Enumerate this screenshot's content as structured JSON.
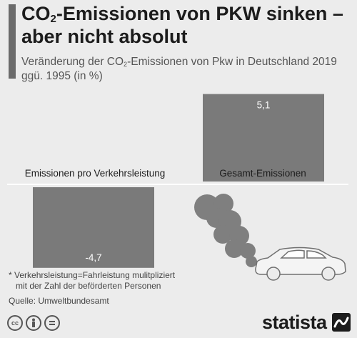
{
  "header": {
    "title_pre": "CO",
    "title_sub": "2",
    "title_post": "-Emissionen von PKW sinken – aber nicht absolut",
    "subtitle_pre": "Veränderung der CO",
    "subtitle_sub": "2",
    "subtitle_post": "-Emissionen von Pkw in Deutschland 2019 ggü. 1995 (in %)"
  },
  "chart_data": {
    "type": "bar",
    "categories": [
      "Emissionen pro Verkehrsleistung",
      "Gesamt-Emissionen"
    ],
    "values": [
      -4.7,
      5.1
    ],
    "value_labels": [
      "-4,7",
      "5,1"
    ],
    "bar_color": "#7a7a7a",
    "grid": false
  },
  "footer": {
    "footnote_line1": "* Verkehrsleistung=Fahrleistung mulitpliziert",
    "footnote_line2": "mit der Zahl der beförderten Personen",
    "source": "Quelle: Umweltbundesamt",
    "brand": "statista",
    "license_icons": [
      "cc-icon",
      "attribution-icon",
      "no-derivatives-icon"
    ]
  },
  "colors": {
    "background": "#ececec",
    "bar": "#7a7a7a",
    "accent": "#6b6b6b"
  }
}
